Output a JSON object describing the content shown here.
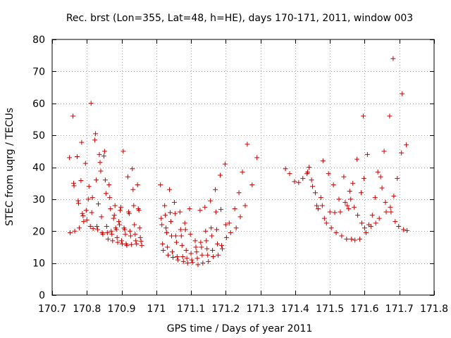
{
  "chart_data": {
    "type": "scatter",
    "title": "Rec. brst (Lon=355, Lat=48, h=HE), days 170-171, 2011, window 003",
    "xlabel": "GPS time / Days of year 2011",
    "ylabel": "STEC from uqrg / TECUs",
    "xlim": [
      170.7,
      171.8
    ],
    "ylim": [
      0,
      80
    ],
    "xticks": [
      170.7,
      170.8,
      170.9,
      171.0,
      171.1,
      171.2,
      171.3,
      171.4,
      171.5,
      171.6,
      171.7,
      171.8
    ],
    "xtick_labels": [
      "170.7",
      "170.8",
      "170.9",
      "171",
      "171.1",
      "171.2",
      "171.3",
      "171.4",
      "171.5",
      "171.6",
      "171.7",
      "171.8"
    ],
    "yticks": [
      0,
      10,
      20,
      30,
      40,
      50,
      60,
      70,
      80
    ],
    "ytick_labels": [
      "0",
      "10",
      "20",
      "30",
      "40",
      "50",
      "60",
      "70",
      "80"
    ],
    "grid": true,
    "marker": "plus",
    "color": "#cc0000",
    "points": [
      [
        170.75,
        43.0
      ],
      [
        170.752,
        19.5
      ],
      [
        170.76,
        56.0
      ],
      [
        170.762,
        35.0
      ],
      [
        170.763,
        34.2
      ],
      [
        170.765,
        20.0
      ],
      [
        170.772,
        43.3
      ],
      [
        170.775,
        29.5
      ],
      [
        170.776,
        28.7
      ],
      [
        170.778,
        21.0
      ],
      [
        170.783,
        35.8
      ],
      [
        170.785,
        47.8
      ],
      [
        170.787,
        25.5
      ],
      [
        170.789,
        24.8
      ],
      [
        170.791,
        23.0
      ],
      [
        170.796,
        41.2
      ],
      [
        170.798,
        26.5
      ],
      [
        170.8,
        23.5
      ],
      [
        170.804,
        30.0
      ],
      [
        170.806,
        34.0
      ],
      [
        170.81,
        21.5
      ],
      [
        170.812,
        60.0
      ],
      [
        170.814,
        25.8
      ],
      [
        170.816,
        30.5
      ],
      [
        170.818,
        20.8
      ],
      [
        170.823,
        48.5
      ],
      [
        170.825,
        50.5
      ],
      [
        170.827,
        36.0
      ],
      [
        170.829,
        21.5
      ],
      [
        170.831,
        20.5
      ],
      [
        170.833,
        28.5
      ],
      [
        170.836,
        44.0
      ],
      [
        170.838,
        41.5
      ],
      [
        170.84,
        38.8
      ],
      [
        170.842,
        24.5
      ],
      [
        170.844,
        19.5
      ],
      [
        170.846,
        19.0
      ],
      [
        170.849,
        43.5
      ],
      [
        170.851,
        45.0
      ],
      [
        170.853,
        36.0
      ],
      [
        170.855,
        31.8
      ],
      [
        170.857,
        21.5
      ],
      [
        170.859,
        19.5
      ],
      [
        170.861,
        17.5
      ],
      [
        170.864,
        34.5
      ],
      [
        170.866,
        30.5
      ],
      [
        170.868,
        27.0
      ],
      [
        170.87,
        20.0
      ],
      [
        170.872,
        19.0
      ],
      [
        170.874,
        17.0
      ],
      [
        170.877,
        24.0
      ],
      [
        170.879,
        25.0
      ],
      [
        170.881,
        28.0
      ],
      [
        170.883,
        21.0
      ],
      [
        170.885,
        20.5
      ],
      [
        170.887,
        18.0
      ],
      [
        170.889,
        16.5
      ],
      [
        170.892,
        23.0
      ],
      [
        170.894,
        22.0
      ],
      [
        170.896,
        26.5
      ],
      [
        170.898,
        27.5
      ],
      [
        170.9,
        17.0
      ],
      [
        170.902,
        16.0
      ],
      [
        170.905,
        45.0
      ],
      [
        170.907,
        21.0
      ],
      [
        170.909,
        20.5
      ],
      [
        170.911,
        19.0
      ],
      [
        170.913,
        16.0
      ],
      [
        170.915,
        15.5
      ],
      [
        170.918,
        37.0
      ],
      [
        170.92,
        26.0
      ],
      [
        170.922,
        25.5
      ],
      [
        170.924,
        20.0
      ],
      [
        170.926,
        18.5
      ],
      [
        170.928,
        15.8
      ],
      [
        170.931,
        39.5
      ],
      [
        170.933,
        33.0
      ],
      [
        170.935,
        28.0
      ],
      [
        170.937,
        22.0
      ],
      [
        170.939,
        19.0
      ],
      [
        170.941,
        17.0
      ],
      [
        170.943,
        16.0
      ],
      [
        170.946,
        34.5
      ],
      [
        170.948,
        27.0
      ],
      [
        170.95,
        26.5
      ],
      [
        170.952,
        21.0
      ],
      [
        170.954,
        18.0
      ],
      [
        170.956,
        16.8
      ],
      [
        170.958,
        15.5
      ],
      [
        171.012,
        34.5
      ],
      [
        171.014,
        24.0
      ],
      [
        171.016,
        22.0
      ],
      [
        171.018,
        16.0
      ],
      [
        171.02,
        14.0
      ],
      [
        171.024,
        28.0
      ],
      [
        171.026,
        25.0
      ],
      [
        171.028,
        21.0
      ],
      [
        171.03,
        19.5
      ],
      [
        171.032,
        15.0
      ],
      [
        171.034,
        12.5
      ],
      [
        171.038,
        33.0
      ],
      [
        171.04,
        25.8
      ],
      [
        171.042,
        23.0
      ],
      [
        171.044,
        18.5
      ],
      [
        171.046,
        13.5
      ],
      [
        171.048,
        11.8
      ],
      [
        171.052,
        29.0
      ],
      [
        171.054,
        25.5
      ],
      [
        171.056,
        18.5
      ],
      [
        171.058,
        16.5
      ],
      [
        171.06,
        12.0
      ],
      [
        171.062,
        11.0
      ],
      [
        171.068,
        26.0
      ],
      [
        171.07,
        20.5
      ],
      [
        171.072,
        18.5
      ],
      [
        171.074,
        15.5
      ],
      [
        171.076,
        12.0
      ],
      [
        171.078,
        10.5
      ],
      [
        171.082,
        22.5
      ],
      [
        171.084,
        20.5
      ],
      [
        171.086,
        14.0
      ],
      [
        171.088,
        11.5
      ],
      [
        171.09,
        10.0
      ],
      [
        171.096,
        27.0
      ],
      [
        171.098,
        19.0
      ],
      [
        171.1,
        13.0
      ],
      [
        171.102,
        11.0
      ],
      [
        171.104,
        10.2
      ],
      [
        171.112,
        17.0
      ],
      [
        171.114,
        15.0
      ],
      [
        171.116,
        13.5
      ],
      [
        171.118,
        11.5
      ],
      [
        171.12,
        9.5
      ],
      [
        171.126,
        26.5
      ],
      [
        171.128,
        16.5
      ],
      [
        171.13,
        15.0
      ],
      [
        171.132,
        12.5
      ],
      [
        171.134,
        10.0
      ],
      [
        171.14,
        27.5
      ],
      [
        171.142,
        20.0
      ],
      [
        171.144,
        17.0
      ],
      [
        171.146,
        14.5
      ],
      [
        171.148,
        12.5
      ],
      [
        171.15,
        10.5
      ],
      [
        171.156,
        29.5
      ],
      [
        171.158,
        21.0
      ],
      [
        171.16,
        18.5
      ],
      [
        171.162,
        14.0
      ],
      [
        171.164,
        12.0
      ],
      [
        171.17,
        33.0
      ],
      [
        171.172,
        26.0
      ],
      [
        171.174,
        20.5
      ],
      [
        171.176,
        16.0
      ],
      [
        171.178,
        12.5
      ],
      [
        171.184,
        37.5
      ],
      [
        171.186,
        26.8
      ],
      [
        171.188,
        15.5
      ],
      [
        171.19,
        14.5
      ],
      [
        171.198,
        41.0
      ],
      [
        171.2,
        22.0
      ],
      [
        171.202,
        18.0
      ],
      [
        171.21,
        22.5
      ],
      [
        171.214,
        19.5
      ],
      [
        171.226,
        27.0
      ],
      [
        171.23,
        21.0
      ],
      [
        171.238,
        32.0
      ],
      [
        171.242,
        24.5
      ],
      [
        171.248,
        38.5
      ],
      [
        171.256,
        28.0
      ],
      [
        171.262,
        47.2
      ],
      [
        171.276,
        34.5
      ],
      [
        171.29,
        43.0
      ],
      [
        171.372,
        39.5
      ],
      [
        171.384,
        38.0
      ],
      [
        171.398,
        35.5
      ],
      [
        171.41,
        35.2
      ],
      [
        171.422,
        36.5
      ],
      [
        171.434,
        38.0
      ],
      [
        171.436,
        38.5
      ],
      [
        171.44,
        40.0
      ],
      [
        171.447,
        36.0
      ],
      [
        171.45,
        34.0
      ],
      [
        171.458,
        32.0
      ],
      [
        171.462,
        28.0
      ],
      [
        171.466,
        27.0
      ],
      [
        171.474,
        30.5
      ],
      [
        171.478,
        28.0
      ],
      [
        171.48,
        42.0
      ],
      [
        171.484,
        24.0
      ],
      [
        171.49,
        22.5
      ],
      [
        171.496,
        38.0
      ],
      [
        171.5,
        26.0
      ],
      [
        171.504,
        21.0
      ],
      [
        171.51,
        34.5
      ],
      [
        171.514,
        25.8
      ],
      [
        171.518,
        19.5
      ],
      [
        171.526,
        30.0
      ],
      [
        171.53,
        26.0
      ],
      [
        171.534,
        18.5
      ],
      [
        171.54,
        37.0
      ],
      [
        171.544,
        29.0
      ],
      [
        171.548,
        17.5
      ],
      [
        171.55,
        28.0
      ],
      [
        171.554,
        27.0
      ],
      [
        171.557,
        32.5
      ],
      [
        171.56,
        30.0
      ],
      [
        171.562,
        17.5
      ],
      [
        171.566,
        35.0
      ],
      [
        171.57,
        27.5
      ],
      [
        171.572,
        17.2
      ],
      [
        171.578,
        42.5
      ],
      [
        171.58,
        25.0
      ],
      [
        171.586,
        17.5
      ],
      [
        171.59,
        32.0
      ],
      [
        171.592,
        22.5
      ],
      [
        171.596,
        56.0
      ],
      [
        171.598,
        36.5
      ],
      [
        171.6,
        21.0
      ],
      [
        171.604,
        19.5
      ],
      [
        171.608,
        44.0
      ],
      [
        171.612,
        22.0
      ],
      [
        171.618,
        21.5
      ],
      [
        171.622,
        25.0
      ],
      [
        171.63,
        30.5
      ],
      [
        171.632,
        22.5
      ],
      [
        171.638,
        38.5
      ],
      [
        171.642,
        24.0
      ],
      [
        171.646,
        37.0
      ],
      [
        171.65,
        33.5
      ],
      [
        171.656,
        45.0
      ],
      [
        171.66,
        29.0
      ],
      [
        171.662,
        26.0
      ],
      [
        171.672,
        56.0
      ],
      [
        171.674,
        27.5
      ],
      [
        171.676,
        26.0
      ],
      [
        171.682,
        74.0
      ],
      [
        171.684,
        31.0
      ],
      [
        171.688,
        23.0
      ],
      [
        171.694,
        36.5
      ],
      [
        171.698,
        21.5
      ],
      [
        171.706,
        44.5
      ],
      [
        171.708,
        63.0
      ],
      [
        171.712,
        20.5
      ],
      [
        171.72,
        47.0
      ],
      [
        171.722,
        20.2
      ]
    ]
  }
}
